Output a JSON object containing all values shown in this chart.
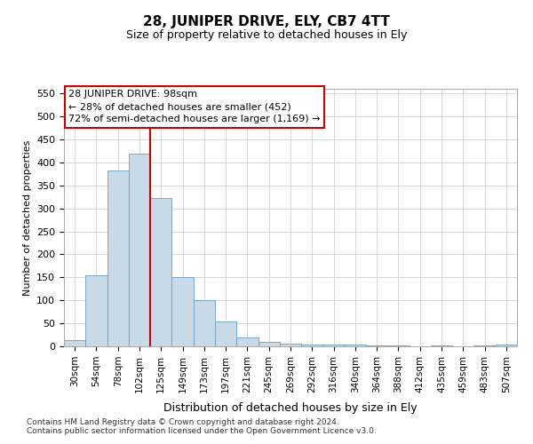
{
  "title": "28, JUNIPER DRIVE, ELY, CB7 4TT",
  "subtitle": "Size of property relative to detached houses in Ely",
  "xlabel": "Distribution of detached houses by size in Ely",
  "ylabel": "Number of detached properties",
  "footnote": "Contains HM Land Registry data © Crown copyright and database right 2024.\nContains public sector information licensed under the Open Government Licence v3.0.",
  "annotation_title": "28 JUNIPER DRIVE: 98sqm",
  "annotation_line1": "← 28% of detached houses are smaller (452)",
  "annotation_line2": "72% of semi-detached houses are larger (1,169) →",
  "bar_color": "#c9d9e8",
  "bar_edge_color": "#6a9ec0",
  "vline_color": "#cc0000",
  "annotation_box_edge_color": "#cc0000",
  "annotation_box_face_color": "#ffffff",
  "grid_color": "#d0d0d8",
  "background_color": "#ffffff",
  "categories": [
    "30sqm",
    "54sqm",
    "78sqm",
    "102sqm",
    "125sqm",
    "149sqm",
    "173sqm",
    "197sqm",
    "221sqm",
    "245sqm",
    "269sqm",
    "292sqm",
    "316sqm",
    "340sqm",
    "364sqm",
    "388sqm",
    "412sqm",
    "435sqm",
    "459sqm",
    "483sqm",
    "507sqm"
  ],
  "values": [
    13,
    155,
    383,
    420,
    322,
    150,
    100,
    55,
    20,
    10,
    5,
    3,
    3,
    4,
    1,
    1,
    0,
    1,
    0,
    1,
    3
  ],
  "ylim": [
    0,
    560
  ],
  "yticks": [
    0,
    50,
    100,
    150,
    200,
    250,
    300,
    350,
    400,
    450,
    500,
    550
  ],
  "vline_x": 3.5,
  "title_fontsize": 11,
  "subtitle_fontsize": 9,
  "ylabel_fontsize": 8,
  "xlabel_fontsize": 9,
  "tick_fontsize": 8,
  "xtick_fontsize": 7.5,
  "footnote_fontsize": 6.5,
  "annotation_fontsize": 8
}
